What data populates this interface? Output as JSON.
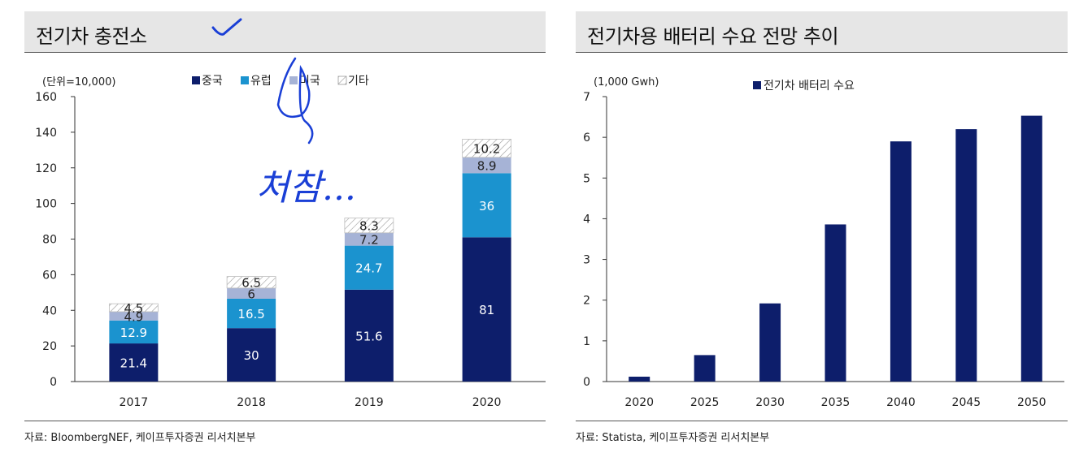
{
  "left_panel": {
    "title": "전기차 충전소",
    "source": "자료: BloombergNEF, 케이프투자증권 리서치본부",
    "annotations": {
      "handwriting": "처참...",
      "checkmark": "✓"
    },
    "chart_data": {
      "type": "stacked-bar",
      "unit_label": "(단위=10,000)",
      "categories": [
        "2017",
        "2018",
        "2019",
        "2020"
      ],
      "ylim": [
        0,
        160
      ],
      "yticks": [
        0,
        20,
        40,
        60,
        80,
        100,
        120,
        140,
        160
      ],
      "series": [
        {
          "name": "중국",
          "color": "#0d1e6b",
          "values": [
            21.4,
            30,
            51.6,
            81
          ]
        },
        {
          "name": "유럽",
          "color": "#1b93cf",
          "values": [
            12.9,
            16.5,
            24.7,
            36
          ]
        },
        {
          "name": "미국",
          "color": "#a6b3d6",
          "values": [
            4.9,
            6,
            7.2,
            8.9
          ]
        },
        {
          "name": "기타",
          "color": "hatched",
          "values": [
            4.5,
            6.5,
            8.3,
            10.2
          ]
        }
      ],
      "legend": [
        "중국",
        "유럽",
        "미국",
        "기타"
      ],
      "data_labels": [
        [
          "21.4",
          "30",
          "51.6",
          "81"
        ],
        [
          "12.9",
          "16.5",
          "24.7",
          "36"
        ],
        [
          "4.9",
          "6",
          "7.2",
          "8.9"
        ],
        [
          "4.5",
          "6.5",
          "8.3",
          "10.2"
        ]
      ],
      "ytick_labels": [
        "0",
        "20",
        "40",
        "60",
        "80",
        "100",
        "120",
        "140",
        "160"
      ]
    }
  },
  "right_panel": {
    "title": "전기차용 배터리 수요 전망 추이",
    "source": "자료: Statista, 케이프투자증권 리서치본부",
    "chart_data": {
      "type": "bar",
      "unit_label": "(1,000 Gwh)",
      "categories": [
        "2020",
        "2025",
        "2030",
        "2035",
        "2040",
        "2045",
        "2050"
      ],
      "values": [
        0.12,
        0.65,
        1.92,
        3.86,
        5.9,
        6.2,
        6.53
      ],
      "ylim": [
        0,
        7
      ],
      "yticks": [
        0,
        1,
        2,
        3,
        4,
        5,
        6,
        7
      ],
      "ytick_labels": [
        "0",
        "1",
        "2",
        "3",
        "4",
        "5",
        "6",
        "7"
      ],
      "legend": [
        "전기차 배터리 수요"
      ],
      "color": "#0d1e6b"
    }
  }
}
